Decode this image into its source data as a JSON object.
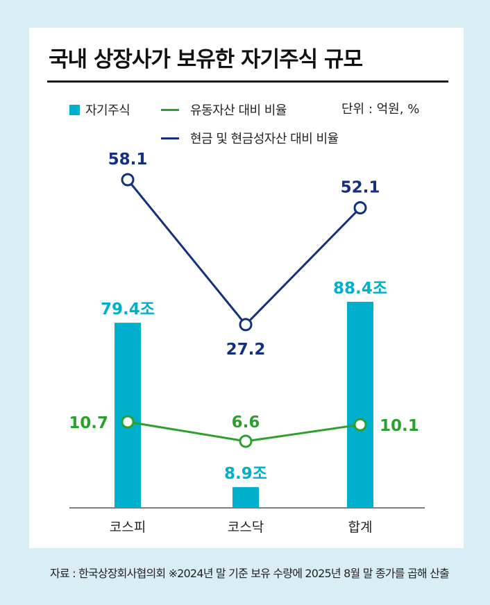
{
  "title": "국내 상장사가 보유한 자기주식 규모",
  "unit": "단위 : 억원, %",
  "legend": {
    "bar": "자기주식",
    "green": "유동자산 대비 비율",
    "blue": "현금 및 현금성자산 대비 비율"
  },
  "footer": "자료 : 한국상장회사협의회  ※2024년 말 기준 보유 수량에 2025년 8월 말 종가를 곱해 산출",
  "colors": {
    "bar": "#00afcc",
    "green": "#2ca02c",
    "blue": "#13307f"
  },
  "chart_data": {
    "type": "bar+line",
    "categories": [
      "코스피",
      "코스닥",
      "합계"
    ],
    "series": [
      {
        "name": "자기주식",
        "type": "bar",
        "values": [
          79.4,
          8.9,
          88.4
        ],
        "labels": [
          "79.4조",
          "8.9조",
          "88.4조"
        ]
      },
      {
        "name": "유동자산 대비 비율",
        "type": "line",
        "values": [
          10.7,
          6.6,
          10.1
        ],
        "labels": [
          "10.7",
          "6.6",
          "10.1"
        ]
      },
      {
        "name": "현금 및 현금성자산 대비 비율",
        "type": "line",
        "values": [
          58.1,
          27.2,
          52.1
        ],
        "labels": [
          "58.1",
          "27.2",
          "52.1"
        ]
      }
    ]
  }
}
